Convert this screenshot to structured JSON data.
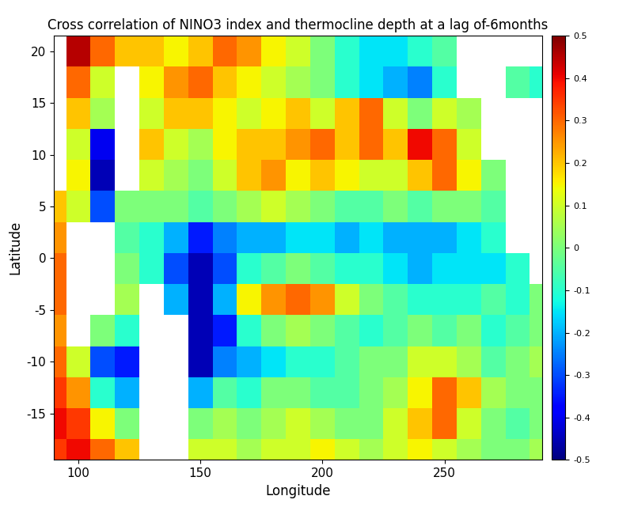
{
  "chart_data": {
    "type": "heatmap",
    "title": "Cross correlation of NINO3 index and thermocline depth at a lag of-6months",
    "x_label": "Longitude",
    "y_label": "Latitude",
    "x": [
      90,
      100,
      110,
      120,
      130,
      140,
      150,
      160,
      170,
      180,
      190,
      200,
      210,
      220,
      230,
      240,
      250,
      260,
      270,
      280,
      290
    ],
    "y": [
      -19,
      -16,
      -13,
      -10,
      -7,
      -4,
      -1,
      2,
      5,
      8,
      11,
      14,
      17,
      20
    ],
    "cells": [
      [
        0.35,
        0.4,
        0.3,
        0.2,
        null,
        null,
        0.1,
        0.1,
        0.05,
        0.1,
        0.1,
        0.15,
        0.1,
        0.05,
        0.1,
        0.15,
        0.1,
        0.05,
        0.0,
        0.0,
        0.05
      ],
      [
        0.4,
        0.35,
        0.15,
        0.0,
        null,
        null,
        0.0,
        0.05,
        0.0,
        0.05,
        0.1,
        0.05,
        0.0,
        0.0,
        0.1,
        0.2,
        0.3,
        0.1,
        0.0,
        -0.05,
        0.0
      ],
      [
        0.35,
        0.25,
        -0.1,
        -0.2,
        null,
        null,
        -0.2,
        -0.05,
        -0.1,
        0.0,
        0.0,
        -0.05,
        -0.05,
        0.0,
        0.05,
        0.15,
        0.3,
        0.2,
        0.05,
        0.0,
        0.0
      ],
      [
        0.3,
        0.1,
        -0.3,
        -0.35,
        null,
        null,
        -0.45,
        -0.25,
        -0.2,
        -0.15,
        -0.1,
        -0.1,
        -0.05,
        0.0,
        0.0,
        0.1,
        0.1,
        0.05,
        -0.05,
        0.0,
        0.05
      ],
      [
        0.25,
        null,
        0.0,
        -0.1,
        null,
        null,
        -0.45,
        -0.35,
        -0.1,
        0.0,
        0.05,
        0.0,
        -0.05,
        -0.1,
        -0.05,
        0.0,
        -0.05,
        0.0,
        -0.1,
        -0.05,
        0.0
      ],
      [
        0.3,
        null,
        null,
        0.05,
        null,
        -0.2,
        -0.45,
        -0.2,
        0.15,
        0.25,
        0.3,
        0.25,
        0.1,
        0.0,
        -0.05,
        -0.1,
        -0.1,
        -0.1,
        -0.05,
        -0.1,
        0.0
      ],
      [
        0.3,
        null,
        null,
        0.0,
        -0.1,
        -0.3,
        -0.45,
        -0.3,
        -0.1,
        -0.05,
        0.0,
        -0.05,
        -0.1,
        -0.1,
        -0.15,
        -0.2,
        -0.15,
        -0.15,
        -0.15,
        -0.1,
        null
      ],
      [
        0.25,
        null,
        null,
        -0.05,
        -0.1,
        -0.2,
        -0.35,
        -0.25,
        -0.2,
        -0.2,
        -0.15,
        -0.15,
        -0.2,
        -0.15,
        -0.2,
        -0.2,
        -0.2,
        -0.15,
        -0.1,
        null,
        null
      ],
      [
        0.2,
        0.1,
        -0.3,
        0.0,
        0.0,
        0.0,
        -0.05,
        0.0,
        0.05,
        0.1,
        0.05,
        0.0,
        -0.05,
        -0.05,
        0.0,
        -0.05,
        0.0,
        0.0,
        -0.05,
        null,
        null
      ],
      [
        null,
        0.15,
        -0.45,
        null,
        0.1,
        0.05,
        0.0,
        0.1,
        0.2,
        0.25,
        0.15,
        0.2,
        0.15,
        0.1,
        0.1,
        0.2,
        0.3,
        0.15,
        0.0,
        null,
        null
      ],
      [
        null,
        0.1,
        -0.4,
        null,
        0.2,
        0.1,
        0.05,
        0.15,
        0.2,
        0.2,
        0.25,
        0.3,
        0.2,
        0.3,
        0.2,
        0.4,
        0.3,
        0.1,
        null,
        null,
        null
      ],
      [
        null,
        0.2,
        0.05,
        null,
        0.1,
        0.2,
        0.2,
        0.15,
        0.1,
        0.15,
        0.2,
        0.1,
        0.2,
        0.3,
        0.1,
        0.0,
        0.1,
        0.05,
        null,
        null,
        null
      ],
      [
        null,
        0.3,
        0.1,
        null,
        0.15,
        0.25,
        0.3,
        0.2,
        0.15,
        0.1,
        0.05,
        0.0,
        -0.1,
        -0.15,
        -0.2,
        -0.25,
        -0.1,
        null,
        null,
        -0.05,
        -0.1
      ],
      [
        null,
        0.45,
        0.3,
        0.2,
        0.2,
        0.15,
        0.2,
        0.3,
        0.25,
        0.15,
        0.1,
        0.0,
        -0.1,
        -0.15,
        -0.15,
        -0.1,
        -0.05,
        null,
        null,
        null,
        null
      ]
    ],
    "xlim": [
      90,
      290
    ],
    "ylim": [
      -19.5,
      21.5
    ],
    "xticks": [
      100,
      150,
      200,
      250
    ],
    "yticks": [
      -15,
      -10,
      -5,
      0,
      5,
      10,
      15,
      20
    ],
    "colorbar": {
      "range": [
        -0.5,
        0.5
      ],
      "ticks": [
        -0.5,
        -0.4,
        -0.3,
        -0.2,
        -0.1,
        0,
        0.1,
        0.2,
        0.3,
        0.4,
        0.5
      ]
    },
    "grid": false
  }
}
